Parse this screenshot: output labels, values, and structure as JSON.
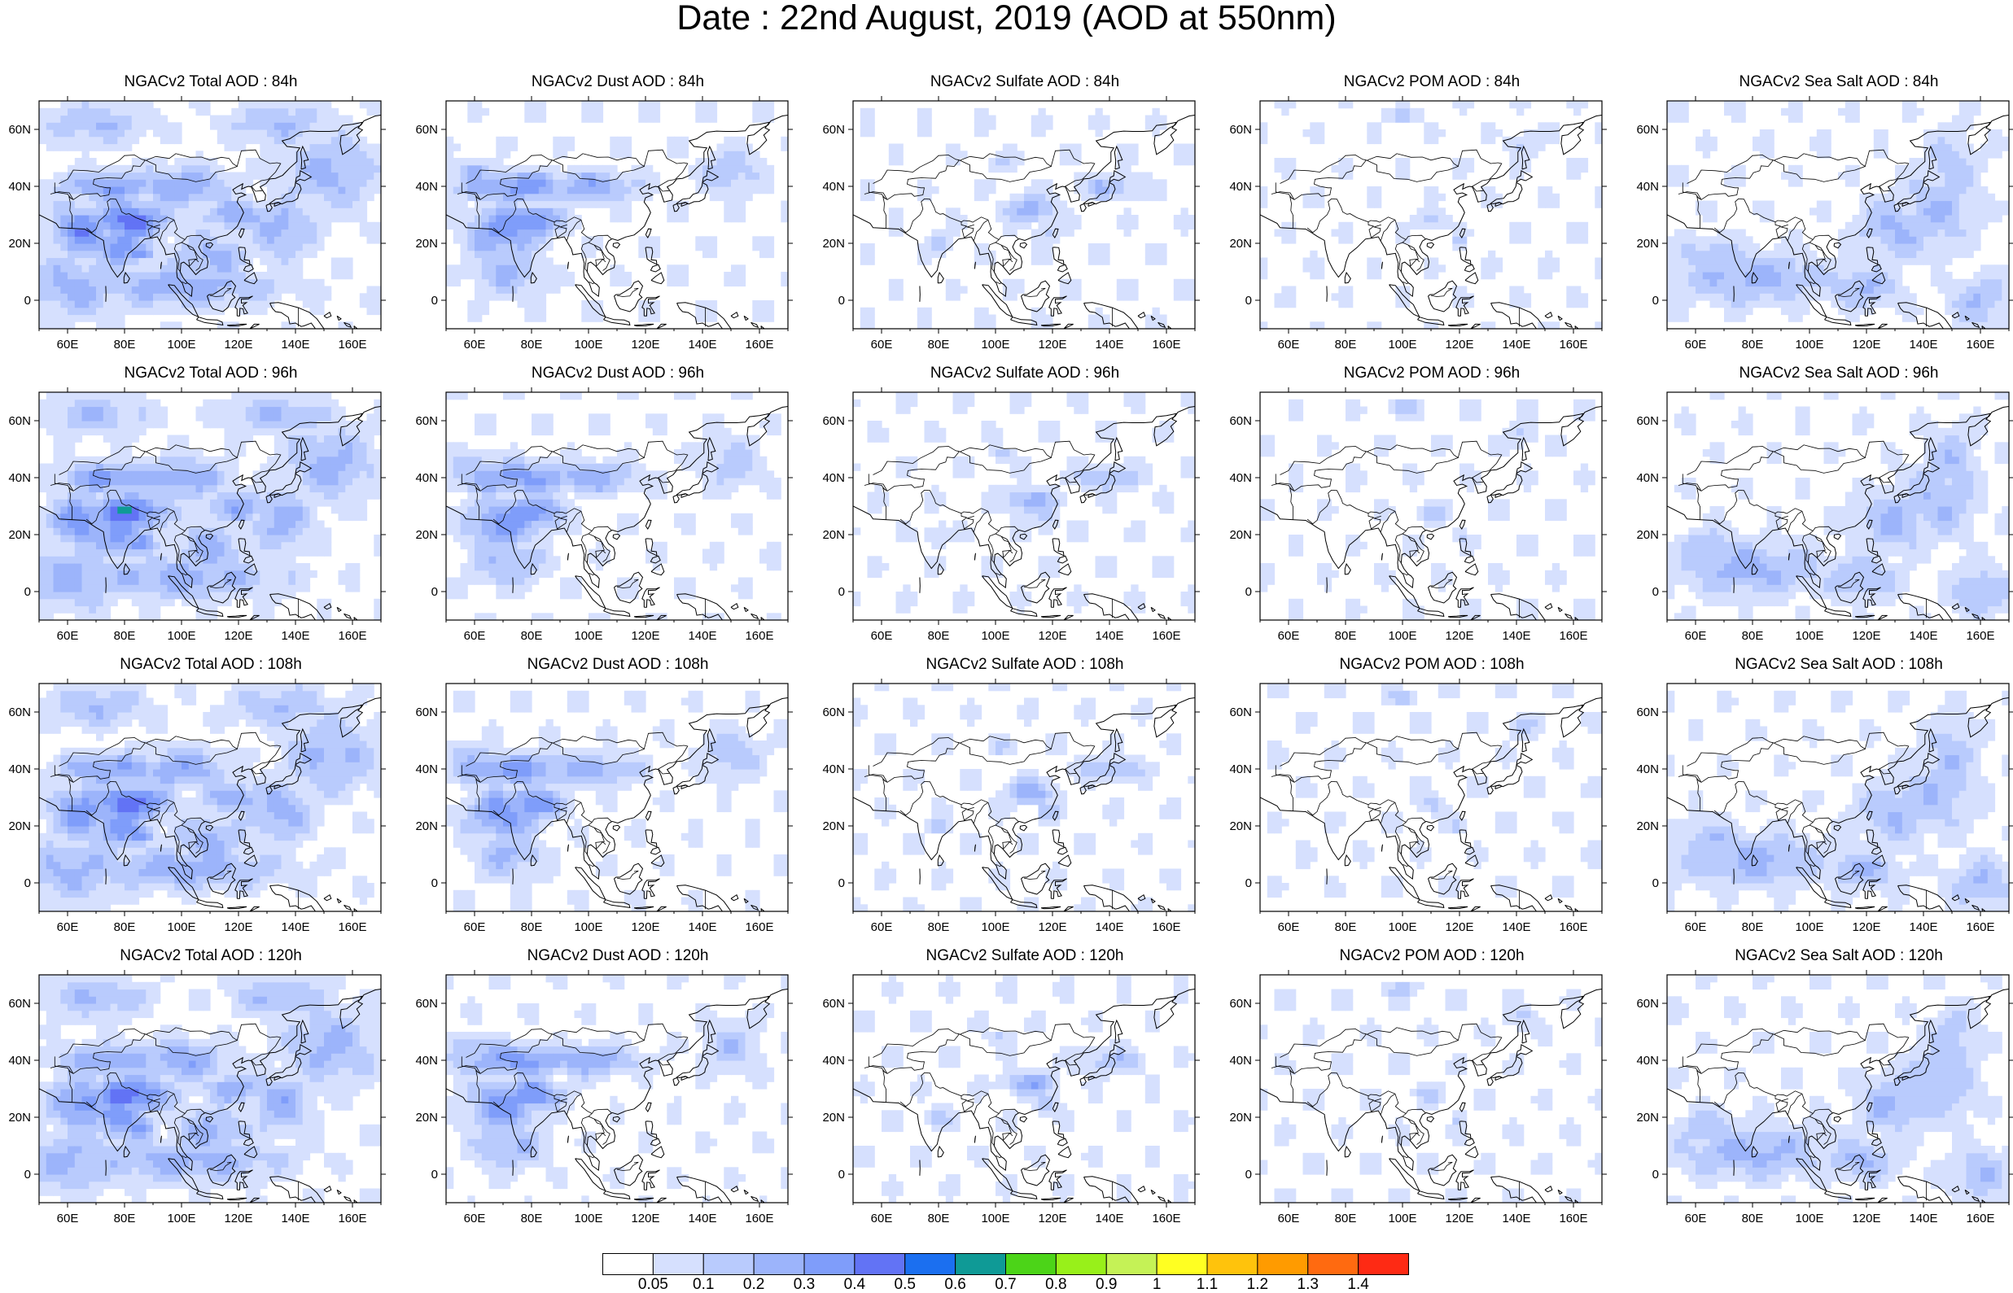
{
  "title": "Date : 22nd August, 2019 (AOD at 550nm)",
  "panels": [
    {
      "title": "NGACv2 Total AOD : 84h",
      "species": "total"
    },
    {
      "title": "NGACv2 Dust AOD : 84h",
      "species": "dust"
    },
    {
      "title": "NGACv2 Sulfate AOD : 84h",
      "species": "sulfate"
    },
    {
      "title": "NGACv2 POM AOD : 84h",
      "species": "pom"
    },
    {
      "title": "NGACv2 Sea Salt AOD : 84h",
      "species": "seasalt"
    },
    {
      "title": "NGACv2 Total AOD : 96h",
      "species": "total"
    },
    {
      "title": "NGACv2 Dust AOD : 96h",
      "species": "dust"
    },
    {
      "title": "NGACv2 Sulfate AOD : 96h",
      "species": "sulfate"
    },
    {
      "title": "NGACv2 POM AOD : 96h",
      "species": "pom"
    },
    {
      "title": "NGACv2 Sea Salt AOD : 96h",
      "species": "seasalt"
    },
    {
      "title": "NGACv2 Total AOD : 108h",
      "species": "total"
    },
    {
      "title": "NGACv2 Dust AOD : 108h",
      "species": "dust"
    },
    {
      "title": "NGACv2 Sulfate AOD : 108h",
      "species": "sulfate"
    },
    {
      "title": "NGACv2 POM AOD : 108h",
      "species": "pom"
    },
    {
      "title": "NGACv2 Sea Salt AOD : 108h",
      "species": "seasalt"
    },
    {
      "title": "NGACv2 Total AOD : 120h",
      "species": "total"
    },
    {
      "title": "NGACv2 Dust AOD : 120h",
      "species": "dust"
    },
    {
      "title": "NGACv2 Sulfate AOD : 120h",
      "species": "sulfate"
    },
    {
      "title": "NGACv2 POM AOD : 120h",
      "species": "pom"
    },
    {
      "title": "NGACv2 Sea Salt  AOD : 120h",
      "species": "seasalt"
    }
  ],
  "axes": {
    "lon_range": [
      50,
      170
    ],
    "lat_range": [
      -10,
      70
    ],
    "lon_ticks": [
      "60E",
      "80E",
      "100E",
      "120E",
      "140E",
      "160E"
    ],
    "lat_ticks": [
      "60N",
      "40N",
      "20N",
      "0"
    ]
  },
  "colorbar": {
    "labels": [
      "0.05",
      "0.1",
      "0.2",
      "0.3",
      "0.4",
      "0.5",
      "0.6",
      "0.7",
      "0.8",
      "0.9",
      "1",
      "1.1",
      "1.2",
      "1.3",
      "1.4"
    ],
    "colors": [
      "#ffffff",
      "#d6e0fe",
      "#b9cbfd",
      "#9cb4fb",
      "#7f9dfa",
      "#6273f5",
      "#1b6ff0",
      "#0f9a96",
      "#4cd418",
      "#98f01a",
      "#c5f256",
      "#ffff22",
      "#ffc30c",
      "#ff9b00",
      "#ff6a10",
      "#fe2a14"
    ]
  }
}
